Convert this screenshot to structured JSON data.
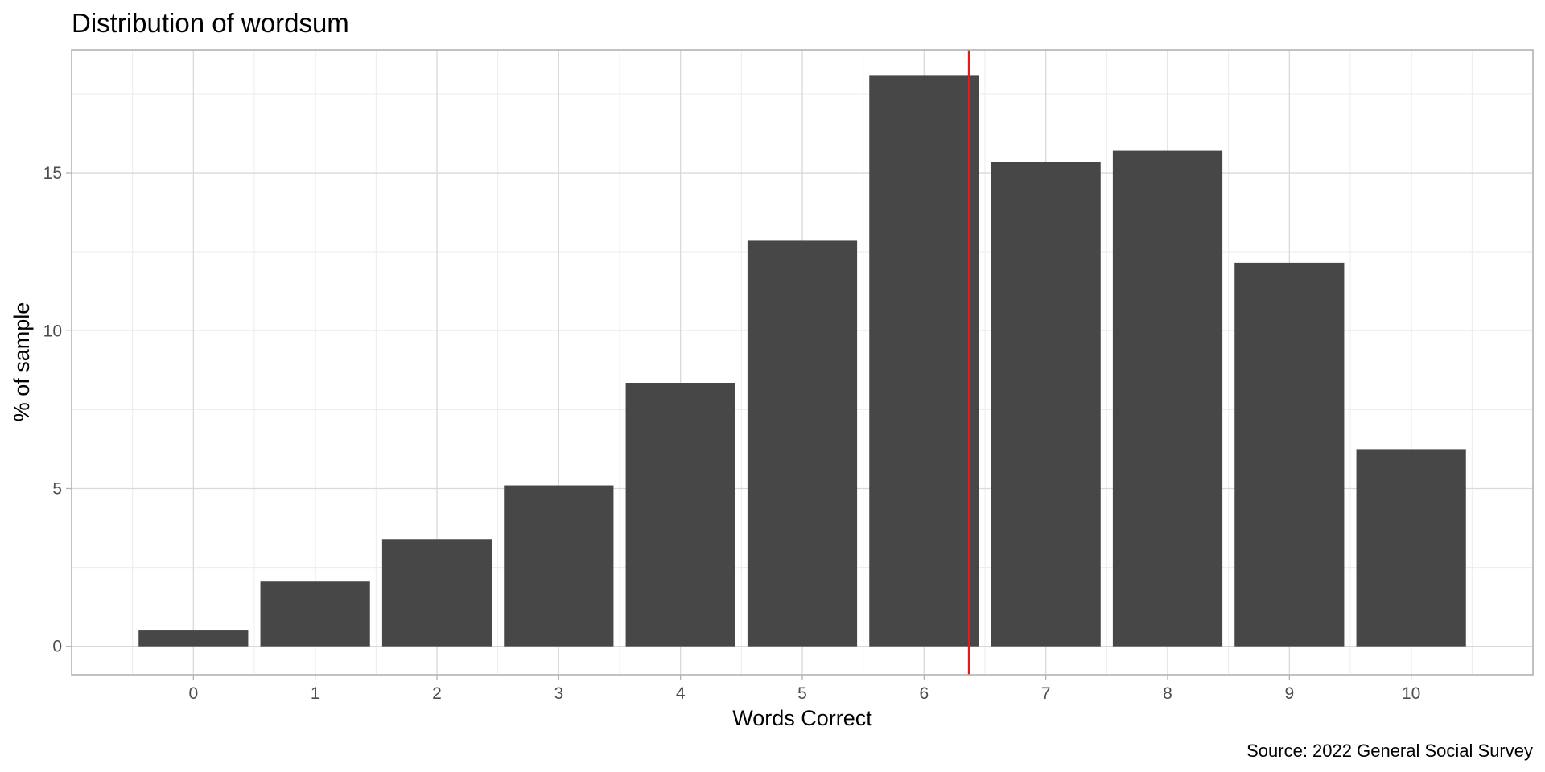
{
  "chart_data": {
    "type": "bar",
    "title": "Distribution of wordsum",
    "xlabel": "Words Correct",
    "ylabel": "% of sample",
    "caption": "Source: 2022 General Social Survey",
    "categories": [
      "0",
      "1",
      "2",
      "3",
      "4",
      "5",
      "6",
      "7",
      "8",
      "9",
      "10"
    ],
    "values": [
      0.5,
      2.05,
      3.4,
      5.1,
      8.35,
      12.85,
      18.1,
      15.35,
      15.7,
      12.15,
      6.25
    ],
    "yticks": [
      0,
      5,
      10,
      15
    ],
    "ylim": [
      -0.9,
      18.9
    ],
    "xlim": [
      -1,
      11
    ],
    "reference_line": {
      "x": 6.37,
      "color": "#e41a1c"
    },
    "bar_color": "#474747",
    "grid": true,
    "legend": "none"
  }
}
